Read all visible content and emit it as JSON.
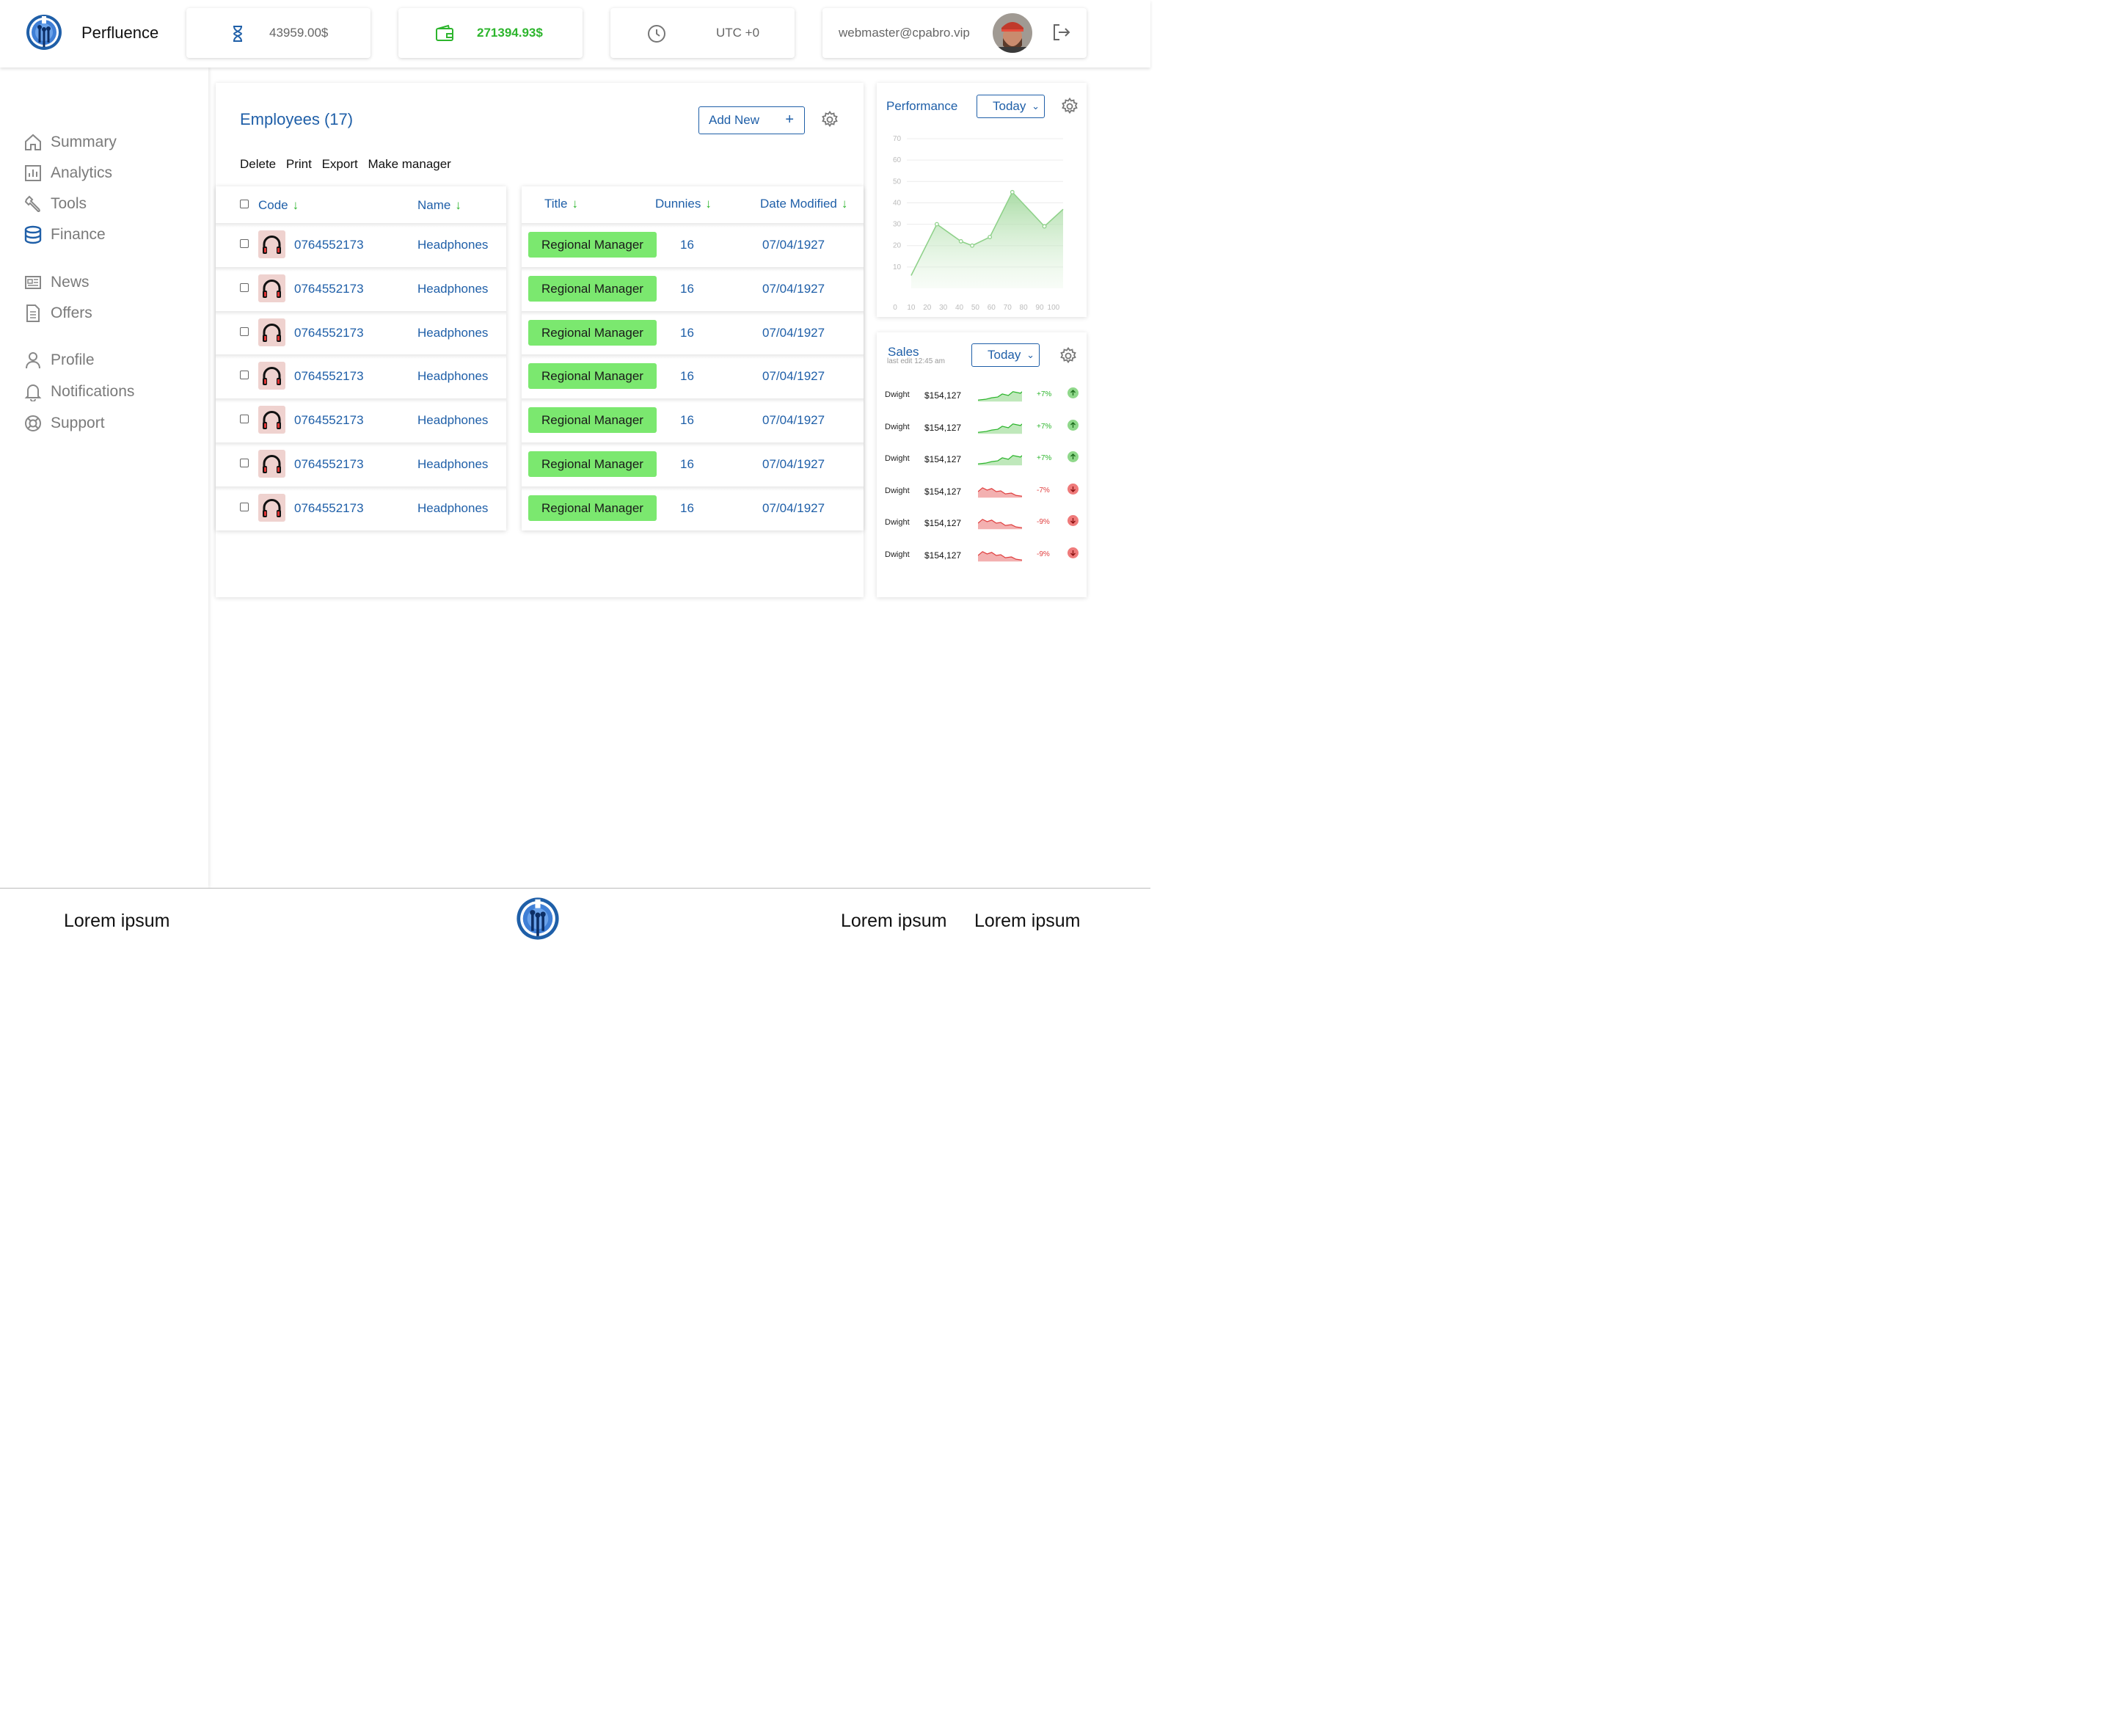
{
  "app": {
    "name": "Perfluence"
  },
  "header": {
    "balance_pending": "43959.00$",
    "balance_wallet": "271394.93$",
    "timezone": "UTC +0",
    "user_email": "webmaster@cpabro.vip"
  },
  "sidebar": {
    "items": [
      {
        "label": "Summary",
        "icon": "home-icon"
      },
      {
        "label": "Analytics",
        "icon": "analytics-icon"
      },
      {
        "label": "Tools",
        "icon": "wrench-icon"
      },
      {
        "label": "Finance",
        "icon": "database-icon"
      },
      {
        "label": "News",
        "icon": "newspaper-icon"
      },
      {
        "label": "Offers",
        "icon": "document-icon"
      },
      {
        "label": "Profile",
        "icon": "user-icon"
      },
      {
        "label": "Notifications",
        "icon": "bell-icon"
      },
      {
        "label": "Support",
        "icon": "lifebuoy-icon"
      }
    ],
    "active": "Finance"
  },
  "employees": {
    "title": "Employees (17)",
    "add_new_label": "Add New",
    "add_new_icon": "+",
    "actions": [
      "Delete",
      "Print",
      "Export",
      "Make manager"
    ],
    "columns": {
      "code": "Code",
      "name": "Name",
      "title": "Title",
      "dunnies": "Dunnies",
      "date_modified": "Date Modified"
    },
    "rows": [
      {
        "code": "0764552173",
        "name": "Headphones",
        "title": "Regional Manager",
        "dunnies": "16",
        "date": "07/04/1927"
      },
      {
        "code": "0764552173",
        "name": "Headphones",
        "title": "Regional Manager",
        "dunnies": "16",
        "date": "07/04/1927"
      },
      {
        "code": "0764552173",
        "name": "Headphones",
        "title": "Regional Manager",
        "dunnies": "16",
        "date": "07/04/1927"
      },
      {
        "code": "0764552173",
        "name": "Headphones",
        "title": "Regional Manager",
        "dunnies": "16",
        "date": "07/04/1927"
      },
      {
        "code": "0764552173",
        "name": "Headphones",
        "title": "Regional Manager",
        "dunnies": "16",
        "date": "07/04/1927"
      },
      {
        "code": "0764552173",
        "name": "Headphones",
        "title": "Regional Manager",
        "dunnies": "16",
        "date": "07/04/1927"
      },
      {
        "code": "0764552173",
        "name": "Headphones",
        "title": "Regional Manager",
        "dunnies": "16",
        "date": "07/04/1927"
      }
    ]
  },
  "performance": {
    "title": "Performance",
    "period": "Today",
    "chart_data": {
      "type": "area",
      "x": [
        0,
        10,
        20,
        30,
        40,
        50,
        60,
        70,
        80,
        90,
        100
      ],
      "y_ticks": [
        10,
        20,
        30,
        40,
        50,
        60,
        70
      ],
      "ylim": [
        0,
        70
      ],
      "xlim": [
        0,
        100
      ],
      "points": [
        [
          10,
          6
        ],
        [
          26,
          30
        ],
        [
          41,
          22
        ],
        [
          48,
          20
        ],
        [
          59,
          24
        ],
        [
          73,
          45
        ],
        [
          93,
          29
        ],
        [
          105,
          37
        ]
      ],
      "grid": true,
      "color": "#8fd18a"
    }
  },
  "sales": {
    "title": "Sales",
    "subtitle": "last edit 12:45 am",
    "period": "Today",
    "rows": [
      {
        "name": "Dwight",
        "amount": "$154,127",
        "change": "+7%",
        "trend": "up"
      },
      {
        "name": "Dwight",
        "amount": "$154,127",
        "change": "+7%",
        "trend": "up"
      },
      {
        "name": "Dwight",
        "amount": "$154,127",
        "change": "+7%",
        "trend": "up"
      },
      {
        "name": "Dwight",
        "amount": "$154,127",
        "change": "-7%",
        "trend": "down"
      },
      {
        "name": "Dwight",
        "amount": "$154,127",
        "change": "-9%",
        "trend": "down"
      },
      {
        "name": "Dwight",
        "amount": "$154,127",
        "change": "-9%",
        "trend": "down"
      }
    ]
  },
  "footer": {
    "links": [
      "Lorem ipsum",
      "Lorem ipsum",
      "Lorem ipsum"
    ]
  },
  "colors": {
    "accent": "#1f5fa8",
    "positive": "#2db52d",
    "negative": "#e04040",
    "badge": "#7be86f"
  }
}
